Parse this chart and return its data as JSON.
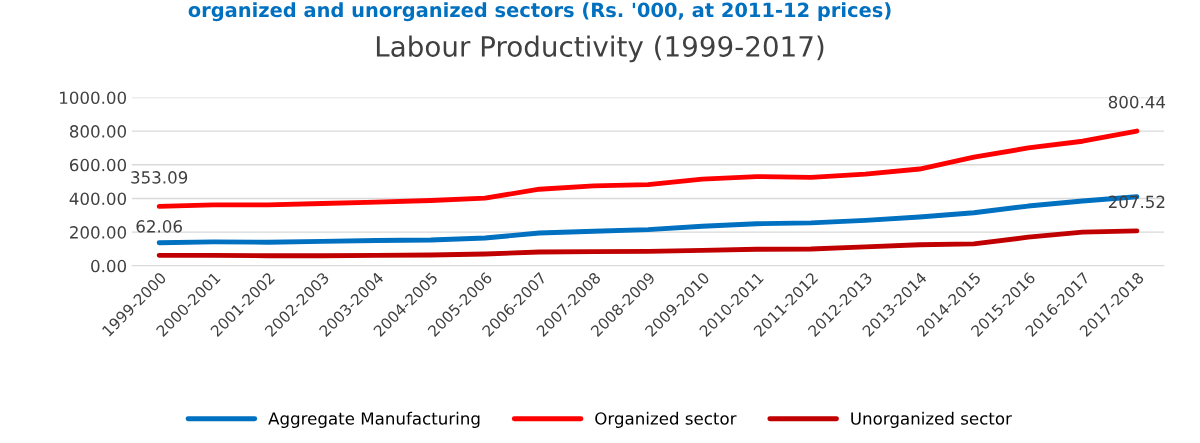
{
  "chart_data": {
    "type": "line",
    "title": "Labour Productivity (1999-2017)",
    "subtitle": "organized and unorganized sectors (Rs. '000, at 2011-12 prices)",
    "categories": [
      "1999-2000",
      "2000-2001",
      "2001-2002",
      "2002-2003",
      "2003-2004",
      "2004-2005",
      "2005-2006",
      "2006-2007",
      "2007-2008",
      "2008-2009",
      "2009-2010",
      "2010-2011",
      "2011-2012",
      "2012-2013",
      "2013-2014",
      "2014-2015",
      "2015-2016",
      "2016-2017",
      "2017-2018"
    ],
    "series": [
      {
        "name": "Aggregate Manufacturing",
        "color": "#0070c0",
        "values": [
          137,
          142,
          140,
          145,
          150,
          153,
          165,
          195,
          205,
          215,
          235,
          250,
          255,
          270,
          290,
          315,
          355,
          385,
          410
        ]
      },
      {
        "name": "Organized sector",
        "color": "#ff0000",
        "values": [
          353.09,
          362,
          362,
          370,
          378,
          388,
          402,
          455,
          475,
          482,
          515,
          530,
          525,
          545,
          575,
          645,
          700,
          740,
          800.44
        ],
        "value_labels": [
          "353.09",
          null,
          null,
          null,
          null,
          null,
          null,
          null,
          null,
          null,
          null,
          null,
          null,
          null,
          null,
          null,
          null,
          null,
          "800.44"
        ]
      },
      {
        "name": "Unorganized sector",
        "color": "#c00000",
        "values": [
          62.06,
          62,
          60,
          60,
          62,
          64,
          70,
          82,
          84,
          86,
          92,
          98,
          100,
          112,
          125,
          130,
          170,
          200,
          207.52
        ],
        "value_labels": [
          "62.06",
          null,
          null,
          null,
          null,
          null,
          null,
          null,
          null,
          null,
          null,
          null,
          null,
          null,
          null,
          null,
          null,
          null,
          "207.52"
        ]
      }
    ],
    "ylim": [
      0,
      1000
    ],
    "yticks": [
      {
        "value": 0,
        "label": "0.00"
      },
      {
        "value": 200,
        "label": "200.00"
      },
      {
        "value": 400,
        "label": "400.00"
      },
      {
        "value": 600,
        "label": "600.00"
      },
      {
        "value": 800,
        "label": "800.00"
      },
      {
        "value": 1000,
        "label": "1000.00"
      }
    ],
    "grid": "y",
    "legend": "bottom",
    "marker": "none",
    "line_style": "solid"
  }
}
